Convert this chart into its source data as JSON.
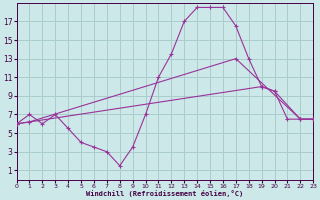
{
  "xlabel": "Windchill (Refroidissement éolien,°C)",
  "bg_color": "#cce8e8",
  "grid_color": "#aacccc",
  "line_color": "#993399",
  "xmin": 0,
  "xmax": 23,
  "ymin": 0,
  "ymax": 19,
  "yticks": [
    1,
    3,
    5,
    7,
    9,
    11,
    13,
    15,
    17
  ],
  "xticks": [
    0,
    1,
    2,
    3,
    4,
    5,
    6,
    7,
    8,
    9,
    10,
    11,
    12,
    13,
    14,
    15,
    16,
    17,
    18,
    19,
    20,
    21,
    22,
    23
  ],
  "curve1_x": [
    0,
    1,
    2,
    3,
    4,
    5,
    6,
    7,
    8,
    9,
    10,
    11,
    12,
    13,
    14,
    15,
    16,
    17,
    18,
    19,
    20,
    21,
    22,
    23
  ],
  "curve1_y": [
    6,
    7,
    6,
    7,
    5.5,
    4,
    3.5,
    3,
    1.5,
    3.5,
    7,
    11,
    13.5,
    17,
    18.5,
    18.5,
    18.5,
    16.5,
    13,
    10,
    9.5,
    6.5,
    6.5,
    6.5
  ],
  "curve2_x": [
    0,
    1,
    17,
    22,
    23
  ],
  "curve2_y": [
    6,
    6.2,
    13,
    6.5,
    6.5
  ],
  "curve3_x": [
    0,
    1,
    19,
    20,
    22,
    23
  ],
  "curve3_y": [
    6,
    6.2,
    10,
    9.5,
    6.5,
    6.5
  ]
}
